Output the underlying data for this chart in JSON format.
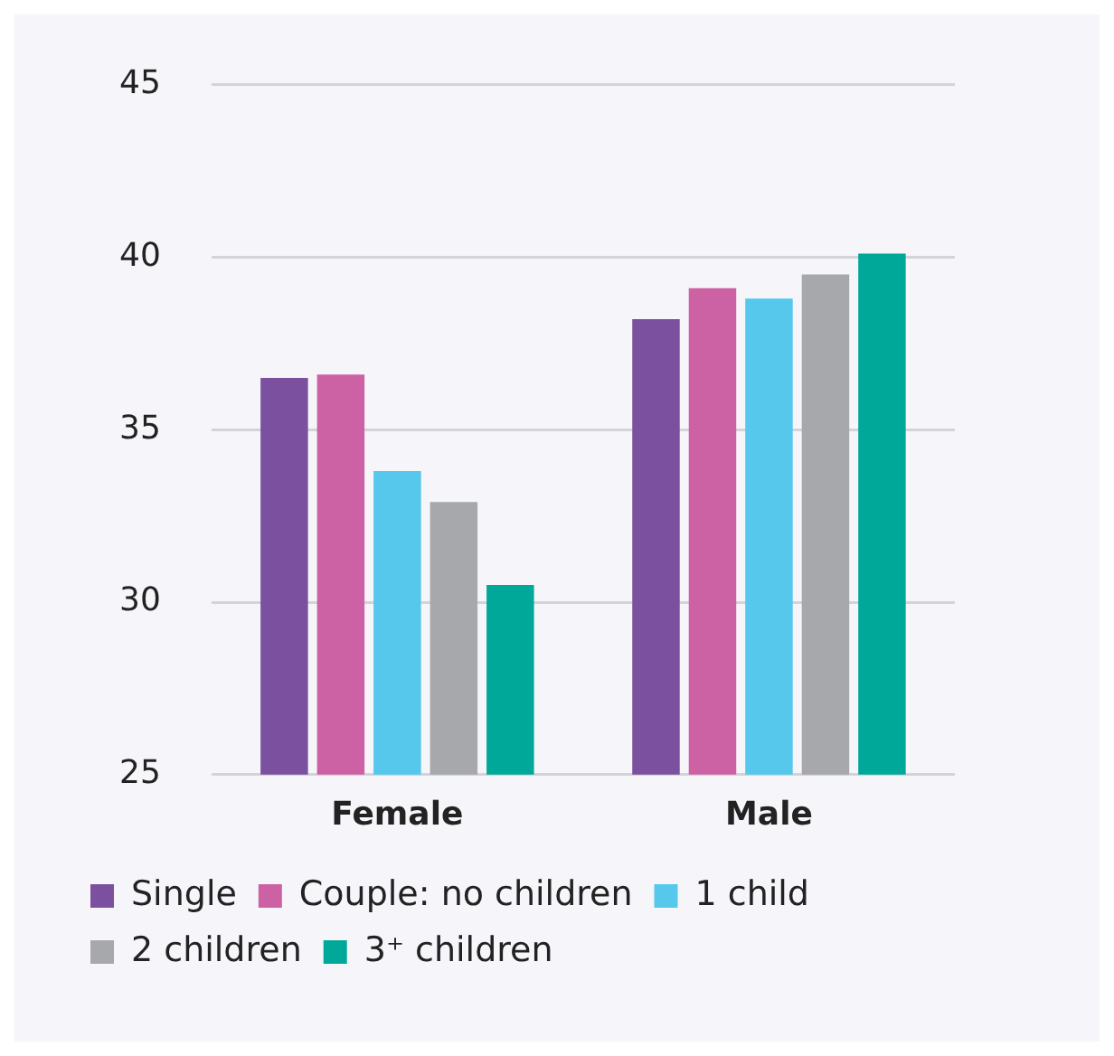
{
  "chart_data": {
    "type": "bar",
    "categories": [
      "Female",
      "Male"
    ],
    "series": [
      {
        "name": "Single",
        "color": "#7b519f",
        "values": [
          36.5,
          38.2
        ]
      },
      {
        "name": "Couple: no children",
        "color": "#cc62a3",
        "values": [
          36.6,
          39.1
        ]
      },
      {
        "name": "1 child",
        "color": "#55c8ec",
        "values": [
          33.8,
          38.8
        ]
      },
      {
        "name": "2 children",
        "color": "#a7a8ac",
        "values": [
          32.9,
          39.5
        ]
      },
      {
        "name": "3⁺ children",
        "color": "#00a899",
        "values": [
          30.5,
          40.1
        ]
      }
    ],
    "ylim": [
      25,
      45
    ],
    "yticks": [
      25,
      30,
      35,
      40,
      45
    ],
    "grid": "y",
    "legend": "bottom"
  }
}
